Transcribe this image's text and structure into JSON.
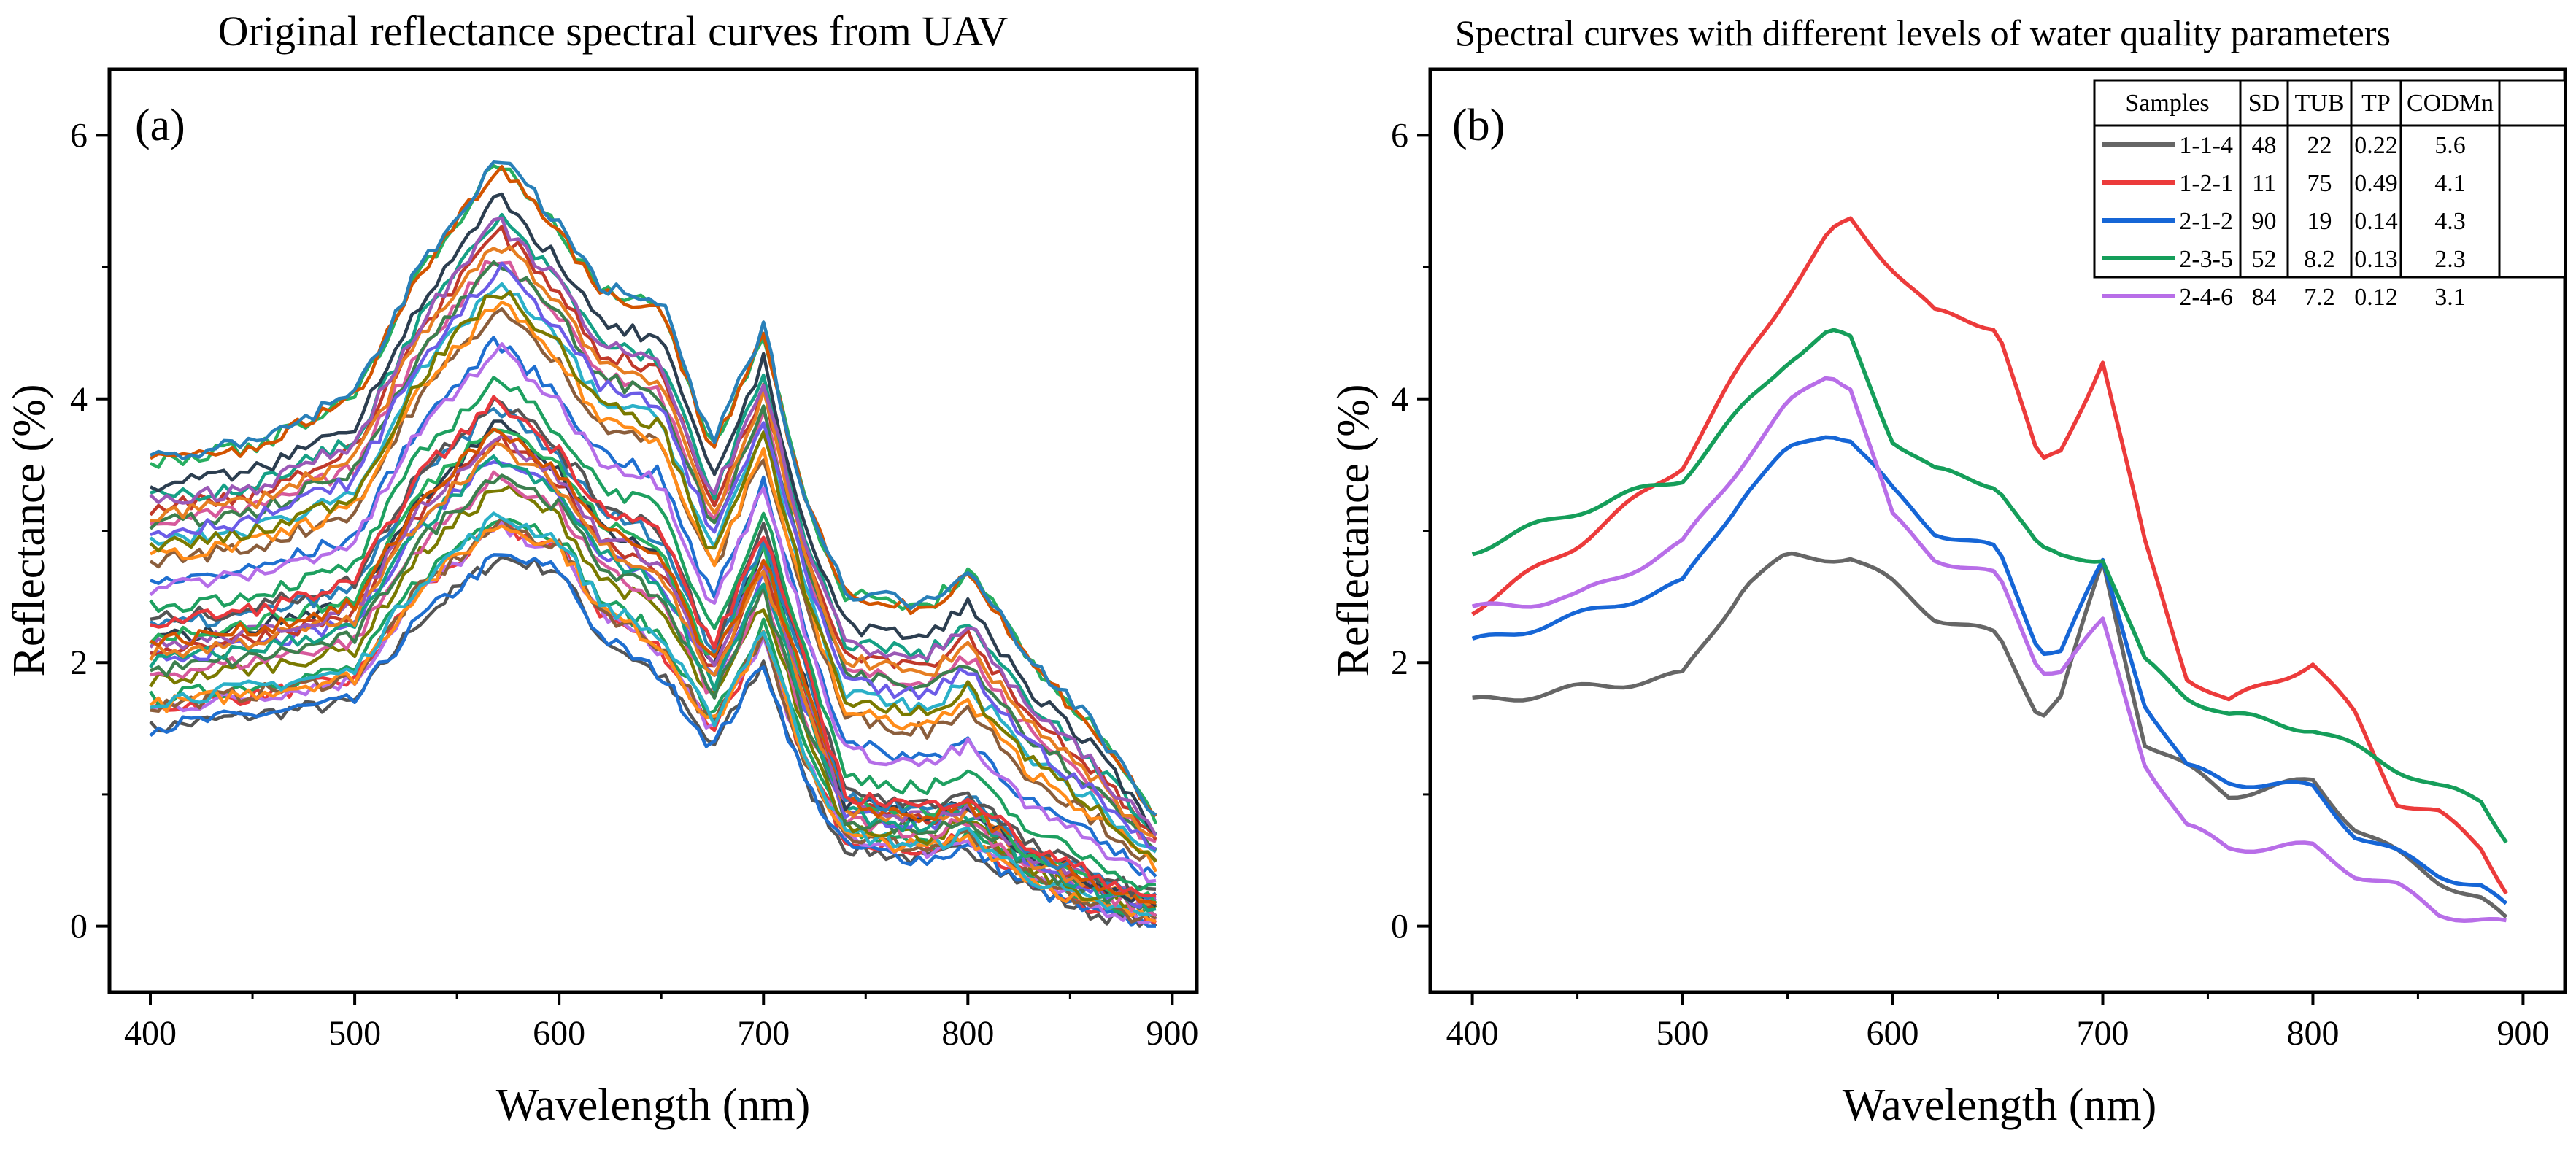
{
  "chart_data": [
    {
      "panel": "(a)",
      "type": "line",
      "title": "Original reflectance spectral curves from UAV",
      "xlabel": "Wavelength (nm)",
      "ylabel": "Reflectance (%)",
      "xlim": [
        380,
        912
      ],
      "ylim": [
        -0.5,
        6.5
      ],
      "xticks": [
        400,
        500,
        600,
        700,
        800,
        900
      ],
      "yticks": [
        0,
        2,
        4,
        6
      ],
      "legend": "none",
      "series_count": 40,
      "colors": [
        "#555555",
        "#e8383d",
        "#1f6fd0",
        "#1ea060",
        "#b56ee8",
        "#8b5e3c",
        "#ff8c1a",
        "#2bb0c8",
        "#7a7a00",
        "#d65a9c",
        "#3d7f4e",
        "#6c5ce7",
        "#c0392b",
        "#16a085",
        "#e67e22",
        "#2c3e50",
        "#9b59b6",
        "#27ae60",
        "#d35400",
        "#2980b9"
      ],
      "description_points": {
        "wavelengths": [
          400,
          450,
          500,
          530,
          570,
          600,
          620,
          650,
          675,
          700,
          720,
          740,
          780,
          800,
          830,
          860,
          895
        ],
        "upper_envelope": [
          3.6,
          3.7,
          4.1,
          5.0,
          5.9,
          5.4,
          4.9,
          4.8,
          3.7,
          4.6,
          3.3,
          2.6,
          2.5,
          2.8,
          2.1,
          1.6,
          0.8
        ],
        "median_curve": [
          2.3,
          2.4,
          2.6,
          3.4,
          4.0,
          3.6,
          3.2,
          3.0,
          2.1,
          3.0,
          2.0,
          1.0,
          0.9,
          1.0,
          0.6,
          0.4,
          0.2
        ],
        "lower_envelope": [
          1.5,
          1.6,
          1.7,
          2.3,
          2.8,
          2.7,
          2.2,
          1.9,
          1.35,
          2.0,
          1.1,
          0.6,
          0.5,
          0.6,
          0.3,
          0.1,
          0.0
        ]
      }
    },
    {
      "panel": "(b)",
      "type": "line",
      "title": "Spectral curves with different levels of water quality parameters",
      "xlabel": "Wavelength (nm)",
      "ylabel": "Reflectance (%)",
      "xlim": [
        380,
        920
      ],
      "ylim": [
        -0.5,
        6.5
      ],
      "xticks": [
        400,
        500,
        600,
        700,
        800,
        900
      ],
      "yticks": [
        0,
        2,
        4,
        6
      ],
      "legend": "top-right",
      "table_headers": [
        "Samples",
        "SD",
        "TUB",
        "TP",
        "CODMn"
      ],
      "x": [
        400,
        450,
        500,
        530,
        550,
        570,
        580,
        600,
        620,
        650,
        670,
        680,
        700,
        720,
        740,
        760,
        800,
        820,
        840,
        860,
        880,
        895
      ],
      "series": [
        {
          "name": "1-1-4",
          "color": "#666666",
          "values": [
            1.7,
            1.8,
            1.9,
            2.6,
            2.8,
            2.8,
            2.8,
            2.6,
            2.35,
            2.2,
            1.6,
            1.75,
            2.75,
            1.4,
            1.2,
            1.0,
            1.1,
            0.75,
            0.55,
            0.35,
            0.2,
            0.0
          ],
          "table": [
            "48",
            "22",
            "0.22",
            "5.6"
          ]
        },
        {
          "name": "1-2-1",
          "color": "#ec3b3b",
          "values": [
            2.4,
            2.9,
            3.5,
            4.3,
            4.8,
            5.25,
            5.35,
            5.0,
            4.65,
            4.55,
            3.5,
            3.6,
            4.3,
            2.9,
            1.9,
            1.7,
            2.0,
            1.6,
            0.95,
            0.85,
            0.6,
            0.2
          ],
          "table": [
            "11",
            "75",
            "0.49",
            "4.1"
          ]
        },
        {
          "name": "2-1-2",
          "color": "#1666d6",
          "values": [
            2.15,
            2.35,
            2.6,
            3.3,
            3.6,
            3.75,
            3.7,
            3.3,
            3.0,
            2.85,
            2.1,
            2.1,
            2.75,
            1.7,
            1.2,
            1.1,
            1.05,
            0.7,
            0.55,
            0.4,
            0.3,
            0.1
          ],
          "table": [
            "90",
            "19",
            "0.14",
            "4.3"
          ]
        },
        {
          "name": "2-3-5",
          "color": "#159e5a",
          "values": [
            2.85,
            3.15,
            3.4,
            3.95,
            4.3,
            4.5,
            4.45,
            3.7,
            3.45,
            3.35,
            2.85,
            2.8,
            2.8,
            2.0,
            1.75,
            1.6,
            1.5,
            1.35,
            1.2,
            1.05,
            0.95,
            0.6
          ],
          "table": [
            "52",
            "8.2",
            "0.13",
            "2.3"
          ]
        },
        {
          "name": "2-4-6",
          "color": "#b86ee8",
          "values": [
            2.4,
            2.5,
            2.9,
            3.55,
            3.95,
            4.2,
            4.1,
            3.1,
            2.8,
            2.65,
            1.95,
            1.95,
            2.3,
            1.25,
            0.75,
            0.6,
            0.6,
            0.4,
            0.3,
            0.1,
            0.05,
            0.0
          ],
          "table": [
            "84",
            "7.2",
            "0.12",
            "3.1"
          ]
        }
      ]
    }
  ]
}
